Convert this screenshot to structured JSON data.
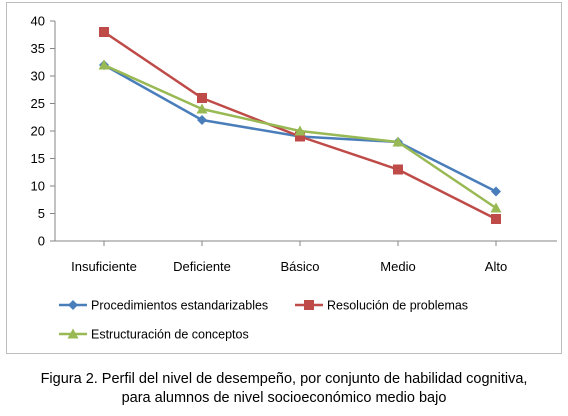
{
  "chart_data": {
    "type": "line",
    "categories": [
      "Insuficiente",
      "Deficiente",
      "Básico",
      "Medio",
      "Alto"
    ],
    "series": [
      {
        "name": "Procedimientos estandarizables",
        "values": [
          32,
          22,
          19,
          18,
          9
        ],
        "color": "#4a7ebb",
        "marker": "diamond"
      },
      {
        "name": "Resolución de problemas",
        "values": [
          38,
          26,
          19,
          13,
          4
        ],
        "color": "#be4b48",
        "marker": "square"
      },
      {
        "name": "Estructuración de conceptos",
        "values": [
          32,
          24,
          20,
          18,
          6
        ],
        "color": "#98b954",
        "marker": "triangle"
      }
    ],
    "yticks": [
      0,
      5,
      10,
      15,
      20,
      25,
      30,
      35,
      40
    ],
    "ylim": [
      0,
      40
    ],
    "grid": false,
    "legend_position": "bottom"
  },
  "caption": {
    "line1": "Figura 2. Perfil del nivel de desempeño, por conjunto de habilidad cognitiva,",
    "line2": "para alumnos de nivel socioeconómico medio bajo"
  }
}
